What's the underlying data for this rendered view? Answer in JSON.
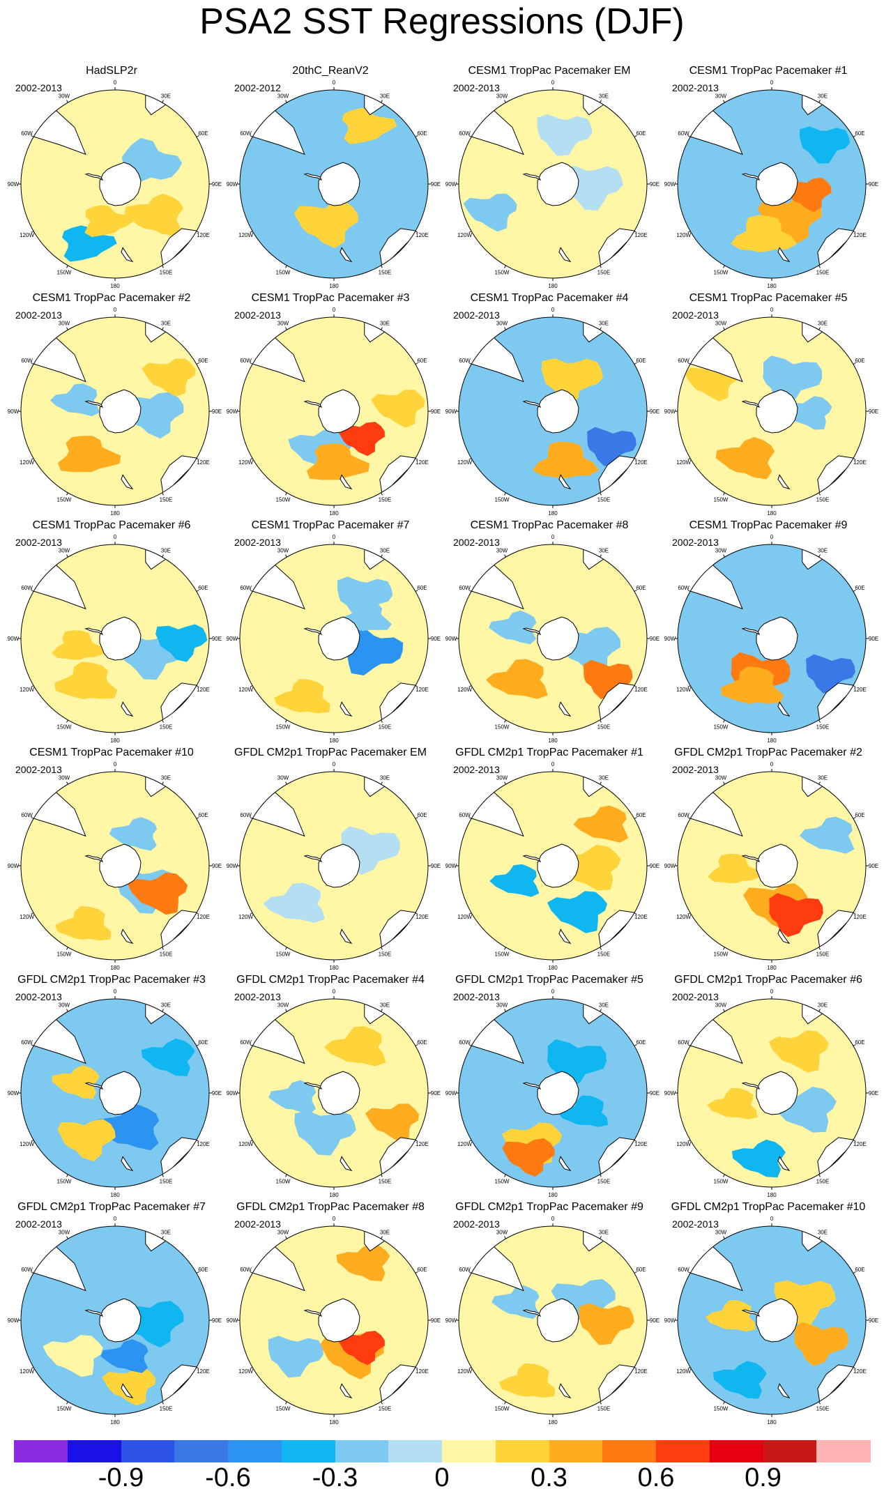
{
  "title": "PSA2 SST Regressions (DJF)",
  "lon_labels": [
    "0",
    "30E",
    "60E",
    "90E",
    "120E",
    "150E",
    "180",
    "150W",
    "120W",
    "90W",
    "60W",
    "30W"
  ],
  "panels": [
    {
      "title": "HadSLP2r",
      "period": "2002-2013"
    },
    {
      "title": "20thC_ReanV2",
      "period": "2002-2012"
    },
    {
      "title": "CESM1 TropPac Pacemaker EM",
      "period": "2002-2013"
    },
    {
      "title": "CESM1 TropPac Pacemaker #1",
      "period": "2002-2013"
    },
    {
      "title": "CESM1 TropPac Pacemaker #2",
      "period": "2002-2013"
    },
    {
      "title": "CESM1 TropPac Pacemaker #3",
      "period": "2002-2013"
    },
    {
      "title": "CESM1 TropPac Pacemaker #4",
      "period": "2002-2013"
    },
    {
      "title": "CESM1 TropPac Pacemaker #5",
      "period": "2002-2013"
    },
    {
      "title": "CESM1 TropPac Pacemaker #6",
      "period": "2002-2013"
    },
    {
      "title": "CESM1 TropPac Pacemaker #7",
      "period": "2002-2013"
    },
    {
      "title": "CESM1 TropPac Pacemaker #8",
      "period": "2002-2013"
    },
    {
      "title": "CESM1 TropPac Pacemaker #9",
      "period": "2002-2013"
    },
    {
      "title": "CESM1 TropPac Pacemaker #10",
      "period": "2002-2013"
    },
    {
      "title": "GFDL CM2p1 TropPac Pacemaker EM",
      "period": ""
    },
    {
      "title": "GFDL CM2p1 TropPac Pacemaker #1",
      "period": "2002-2013"
    },
    {
      "title": "GFDL CM2p1 TropPac Pacemaker #2",
      "period": "2002-2013"
    },
    {
      "title": "GFDL CM2p1 TropPac Pacemaker #3",
      "period": "2002-2013"
    },
    {
      "title": "GFDL CM2p1 TropPac Pacemaker #4",
      "period": "2002-2013"
    },
    {
      "title": "GFDL CM2p1 TropPac Pacemaker #5",
      "period": "2002-2013"
    },
    {
      "title": "GFDL CM2p1 TropPac Pacemaker #6",
      "period": "2002-2013"
    },
    {
      "title": "GFDL CM2p1 TropPac Pacemaker #7",
      "period": "2002-2013"
    },
    {
      "title": "GFDL CM2p1 TropPac Pacemaker #8",
      "period": "2002-2013"
    },
    {
      "title": "GFDL CM2p1 TropPac Pacemaker #9",
      "period": "2002-2013"
    },
    {
      "title": "GFDL CM2p1 TropPac Pacemaker #10",
      "period": "2002-2013"
    }
  ],
  "colorbar": {
    "colors": [
      "#8a2be2",
      "#1a10e8",
      "#2c52e6",
      "#3a78e8",
      "#2b93f0",
      "#10b6f0",
      "#7ec9f0",
      "#b4def2",
      "#fff6a6",
      "#ffd33a",
      "#ffac1e",
      "#ff7a10",
      "#ff3c10",
      "#e80010",
      "#c81818",
      "#ffb4b4"
    ],
    "tick_labels": [
      "-0.9",
      "-0.6",
      "-0.3",
      "0",
      "0.3",
      "0.6",
      "0.9"
    ],
    "tick_values": [
      -0.9,
      -0.6,
      -0.3,
      0,
      0.3,
      0.6,
      0.9
    ],
    "range": [
      -1.2,
      1.2
    ]
  },
  "fields": [
    [
      {
        "c": 8,
        "a": 1,
        "p": 0
      },
      {
        "c": 6,
        "a": 1.0,
        "p": 0.3
      },
      {
        "c": 9,
        "a": 2.2,
        "p": 1.2
      },
      {
        "c": 5,
        "a": 3.6,
        "p": 2
      },
      {
        "c": 9,
        "a": 3.4,
        "p": 1.6
      }
    ],
    [
      {
        "c": 6,
        "a": 1.3,
        "p": 0.8
      },
      {
        "c": 9,
        "a": 3.3,
        "p": 1.2
      },
      {
        "c": 6,
        "a": 4.5,
        "p": 0.4
      },
      {
        "c": 9,
        "a": 0.5,
        "p": 2
      }
    ],
    [
      {
        "c": 8,
        "a": 1,
        "p": 0
      },
      {
        "c": 7,
        "a": 1.6,
        "p": 1
      },
      {
        "c": 7,
        "a": 0.2,
        "p": 0.6
      },
      {
        "c": 6,
        "a": 4.3,
        "p": 0.6
      }
    ],
    [
      {
        "c": 6,
        "a": 0.6,
        "p": 0.9
      },
      {
        "c": 10,
        "a": 2.6,
        "p": 1.2
      },
      {
        "c": 9,
        "a": 3.3,
        "p": 1.8
      },
      {
        "c": 5,
        "a": 0.9,
        "p": 0.3
      },
      {
        "c": 11,
        "a": 1.8,
        "p": 0.2
      }
    ],
    [
      {
        "c": 8,
        "a": 1,
        "p": 0
      },
      {
        "c": 6,
        "a": 1.6,
        "p": 1.2
      },
      {
        "c": 10,
        "a": 3.7,
        "p": 2
      },
      {
        "c": 9,
        "a": 1.0,
        "p": 0.6
      },
      {
        "c": 6,
        "a": 5.0,
        "p": 0.7
      }
    ],
    [
      {
        "c": 8,
        "a": 0.4,
        "p": 0.5
      },
      {
        "c": 6,
        "a": 3.4,
        "p": 1.4
      },
      {
        "c": 10,
        "a": 3.1,
        "p": 2
      },
      {
        "c": 9,
        "a": 1.5,
        "p": 0.6
      },
      {
        "c": 12,
        "a": 2.3,
        "p": 0.2
      }
    ],
    [
      {
        "c": 6,
        "a": 3.5,
        "p": 1.3
      },
      {
        "c": 9,
        "a": 0.5,
        "p": 1.0
      },
      {
        "c": 10,
        "a": 2.9,
        "p": 1.8
      },
      {
        "c": 3,
        "a": 2.1,
        "p": 0.2
      },
      {
        "c": 6,
        "a": 1.4,
        "p": 1.0
      }
    ],
    [
      {
        "c": 8,
        "a": 1,
        "p": 0
      },
      {
        "c": 6,
        "a": 0.5,
        "p": 0.8
      },
      {
        "c": 10,
        "a": 3.6,
        "p": 1.2
      },
      {
        "c": 9,
        "a": 5.2,
        "p": 0.6
      },
      {
        "c": 6,
        "a": 1.6,
        "p": 0.4
      }
    ],
    [
      {
        "c": 8,
        "a": 1,
        "p": 0
      },
      {
        "c": 6,
        "a": 2.0,
        "p": 1.0
      },
      {
        "c": 9,
        "a": 3.7,
        "p": 1.6
      },
      {
        "c": 5,
        "a": 1.6,
        "p": 0.4
      },
      {
        "c": 9,
        "a": 4.5,
        "p": 1.2
      }
    ],
    [
      {
        "c": 8,
        "a": 1,
        "p": 0
      },
      {
        "c": 4,
        "a": 1.9,
        "p": 0.6
      },
      {
        "c": 6,
        "a": 0.6,
        "p": 0.6
      },
      {
        "c": 9,
        "a": 3.6,
        "p": 1.2
      },
      {
        "c": 6,
        "a": 1.0,
        "p": 1.0
      }
    ],
    [
      {
        "c": 8,
        "a": 1,
        "p": 0
      },
      {
        "c": 6,
        "a": 1.8,
        "p": 1.2
      },
      {
        "c": 10,
        "a": 3.8,
        "p": 1.4
      },
      {
        "c": 11,
        "a": 2.2,
        "p": 0.2
      },
      {
        "c": 6,
        "a": 5.0,
        "p": 0.6
      }
    ],
    [
      {
        "c": 6,
        "a": 0.6,
        "p": 0.8
      },
      {
        "c": 11,
        "a": 3.5,
        "p": 0.8
      },
      {
        "c": 10,
        "a": 3.5,
        "p": 1.6
      },
      {
        "c": 3,
        "a": 2.1,
        "p": 0.2
      },
      {
        "c": 6,
        "a": 1.3,
        "p": 0.8
      }
    ],
    [
      {
        "c": 8,
        "a": 1,
        "p": 0
      },
      {
        "c": 6,
        "a": 2.2,
        "p": 1.0
      },
      {
        "c": 11,
        "a": 2.1,
        "p": 1.0
      },
      {
        "c": 9,
        "a": 3.6,
        "p": 1.2
      },
      {
        "c": 6,
        "a": 0.6,
        "p": 0.6
      }
    ],
    [
      {
        "c": 8,
        "a": 1,
        "p": 0
      },
      {
        "c": 7,
        "a": 1.1,
        "p": 0.8
      },
      {
        "c": 7,
        "a": 3.9,
        "p": 1.4
      },
      {
        "c": 8,
        "a": 4.6,
        "p": 0.5
      }
    ],
    [
      {
        "c": 8,
        "a": 1,
        "p": 0
      },
      {
        "c": 9,
        "a": 1.6,
        "p": 1.4
      },
      {
        "c": 5,
        "a": 2.6,
        "p": 1.0
      },
      {
        "c": 10,
        "a": 0.9,
        "p": 1.0
      },
      {
        "c": 5,
        "a": 4.3,
        "p": 0.7
      }
    ],
    [
      {
        "c": 8,
        "a": 1,
        "p": 0
      },
      {
        "c": 10,
        "a": 3.0,
        "p": 1.2
      },
      {
        "c": 12,
        "a": 2.7,
        "p": 0.5
      },
      {
        "c": 6,
        "a": 1.1,
        "p": 1.0
      },
      {
        "c": 9,
        "a": 4.6,
        "p": 1.2
      }
    ],
    [
      {
        "c": 6,
        "a": 1,
        "p": 0
      },
      {
        "c": 4,
        "a": 2.7,
        "p": 1.6
      },
      {
        "c": 9,
        "a": 3.7,
        "p": 0.8
      },
      {
        "c": 5,
        "a": 1.0,
        "p": 0.8
      },
      {
        "c": 9,
        "a": 5.0,
        "p": 0.5
      }
    ],
    [
      {
        "c": 8,
        "a": 1,
        "p": 0
      },
      {
        "c": 6,
        "a": 3.4,
        "p": 1.0
      },
      {
        "c": 9,
        "a": 0.5,
        "p": 1.4
      },
      {
        "c": 10,
        "a": 2.0,
        "p": 0.6
      },
      {
        "c": 6,
        "a": 4.6,
        "p": 0.6
      }
    ],
    [
      {
        "c": 6,
        "a": 1,
        "p": 0
      },
      {
        "c": 5,
        "a": 0.6,
        "p": 0.8
      },
      {
        "c": 9,
        "a": 3.5,
        "p": 1.0
      },
      {
        "c": 11,
        "a": 3.5,
        "p": 0.5
      },
      {
        "c": 5,
        "a": 2.1,
        "p": 0.8
      }
    ],
    [
      {
        "c": 8,
        "a": 1,
        "p": 0
      },
      {
        "c": 6,
        "a": 2.0,
        "p": 1.4
      },
      {
        "c": 9,
        "a": 0.6,
        "p": 1.0
      },
      {
        "c": 5,
        "a": 3.3,
        "p": 0.8
      },
      {
        "c": 9,
        "a": 4.4,
        "p": 0.8
      }
    ],
    [
      {
        "c": 6,
        "a": 1,
        "p": 0
      },
      {
        "c": 5,
        "a": 1.6,
        "p": 1.2
      },
      {
        "c": 8,
        "a": 4.0,
        "p": 1.0
      },
      {
        "c": 9,
        "a": 2.9,
        "p": 0.6
      },
      {
        "c": 4,
        "a": 2.8,
        "p": 0.6
      }
    ],
    [
      {
        "c": 8,
        "a": 1,
        "p": 0
      },
      {
        "c": 10,
        "a": 2.6,
        "p": 1.2
      },
      {
        "c": 6,
        "a": 4.0,
        "p": 0.6
      },
      {
        "c": 10,
        "a": 0.5,
        "p": 0.8
      },
      {
        "c": 12,
        "a": 2.3,
        "p": 0.2
      }
    ],
    [
      {
        "c": 8,
        "a": 1,
        "p": 0
      },
      {
        "c": 6,
        "a": 1.0,
        "p": 1.2
      },
      {
        "c": 10,
        "a": 1.6,
        "p": 0.6
      },
      {
        "c": 9,
        "a": 3.5,
        "p": 1.2
      },
      {
        "c": 6,
        "a": 5.2,
        "p": 0.6
      }
    ],
    [
      {
        "c": 6,
        "a": 1,
        "p": 0
      },
      {
        "c": 9,
        "a": 1.0,
        "p": 1.0
      },
      {
        "c": 10,
        "a": 2.0,
        "p": 0.5
      },
      {
        "c": 5,
        "a": 3.6,
        "p": 0.8
      },
      {
        "c": 9,
        "a": 4.8,
        "p": 0.8
      }
    ]
  ]
}
